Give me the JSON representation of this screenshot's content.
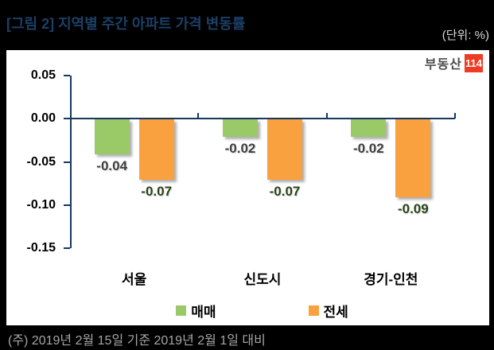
{
  "header": {
    "title": "[그림 2] 지역별 주간 아파트 가격 변동률",
    "unit_label": "(단위: %)"
  },
  "logo": {
    "text": "부동산",
    "badge": "114"
  },
  "chart_data": {
    "type": "bar",
    "title": "지역별 주간 아파트 가격 변동률",
    "categories": [
      "서울",
      "신도시",
      "경기-인천"
    ],
    "series": [
      {
        "name": "매매",
        "color": "#9aca68",
        "label_color": "#3f3f3f",
        "values": [
          -0.04,
          -0.02,
          -0.02
        ]
      },
      {
        "name": "전세",
        "color": "#f9a03f",
        "label_color": "#2a4419",
        "values": [
          -0.07,
          -0.07,
          -0.09
        ]
      }
    ],
    "yticks": [
      0.05,
      0.0,
      -0.05,
      -0.1,
      -0.15
    ],
    "ylim": [
      -0.15,
      0.05
    ],
    "unit": "%",
    "axis_color": "#17375e",
    "grid": false,
    "legend_position": "bottom",
    "data_labels": true
  },
  "footer": {
    "note": "(주) 2019년 2월 15일 기준 2019년 2월 1일 대비"
  }
}
